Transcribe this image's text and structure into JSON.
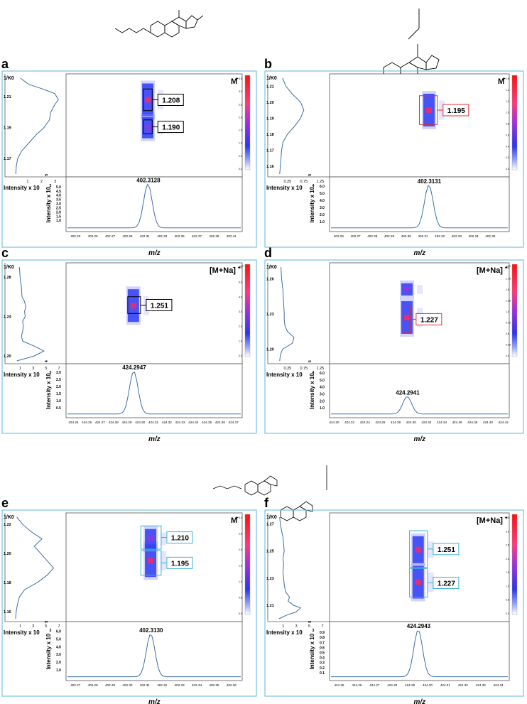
{
  "colors": {
    "frame": "#5bb7d8",
    "trace": "#3b6ea5",
    "black_box": "#000000",
    "red_box": "#e03030",
    "cyan_box": "#39b0d8"
  },
  "chart_data": [
    {
      "panel": "a",
      "type": "mobility-heatmap",
      "ion": "M",
      "ion_sup": "+",
      "y_axis_label": "1/K0",
      "y_ticks": [
        "1.21",
        "1.19",
        "1.17"
      ],
      "ylim": [
        1.16,
        1.222
      ],
      "x_intensity_label": "Intensity x 10",
      "x_intensity_exp": "3",
      "x_intensity_ticks": [
        "1",
        "2",
        "3"
      ],
      "x_intensity_max": 3.5,
      "mobilogram": [
        [
          1.16,
          0.06
        ],
        [
          1.165,
          0.1
        ],
        [
          1.17,
          0.2
        ],
        [
          1.175,
          0.5
        ],
        [
          1.18,
          1.0
        ],
        [
          1.185,
          1.5
        ],
        [
          1.19,
          2.1
        ],
        [
          1.195,
          2.5
        ],
        [
          1.2,
          2.6
        ],
        [
          1.205,
          2.9
        ],
        [
          1.208,
          3.15
        ],
        [
          1.212,
          2.9
        ],
        [
          1.215,
          2.0
        ],
        [
          1.218,
          1.0
        ],
        [
          1.222,
          0.4
        ]
      ],
      "spots": [
        {
          "mz": 402.3128,
          "k": 1.208,
          "amp": 1.0
        },
        {
          "mz": 402.3128,
          "k": 1.19,
          "amp": 0.6
        }
      ],
      "boxes": [
        {
          "label": "1.208",
          "mz_lo": 402.3078,
          "mz_hi": 402.3178,
          "k_lo": 1.201,
          "k_hi": 1.215,
          "color": "#000000"
        },
        {
          "label": "1.190",
          "mz_lo": 402.3078,
          "mz_hi": 402.3178,
          "k_lo": 1.186,
          "k_hi": 1.195,
          "color": "#000000"
        }
      ],
      "mz_peak": 402.3128,
      "mz_label": "402.3128",
      "mz_ticks": [
        "402.23",
        "402.25",
        "402.27",
        "402.29",
        "402.31",
        "402.33",
        "402.35",
        "402.37",
        "402.39",
        "402.41"
      ],
      "mz_range": [
        402.22,
        402.42
      ],
      "spec_ylabel": "Intensity x 10",
      "spec_yexp": "5",
      "spec_yticks": [
        "1.0",
        "1.5",
        "2.0",
        "2.5",
        "3.0",
        "3.5",
        "4.0",
        "4.5",
        "5.0"
      ],
      "spec_ymax": 5.5,
      "spec_peak_height": 5.2,
      "xlabel": "m/z",
      "scale_ticks": [
        "3.5",
        "3.0",
        "2.5",
        "2.0",
        "1.5",
        "1.0",
        "0.5",
        "0.0"
      ]
    },
    {
      "panel": "b",
      "type": "mobility-heatmap",
      "ion": "M",
      "ion_sup": "+",
      "y_axis_label": "1/K0",
      "y_ticks": [
        "1.21",
        "1.20",
        "1.19",
        "1.18",
        "1.17",
        "1.16"
      ],
      "ylim": [
        1.155,
        1.215
      ],
      "x_intensity_label": "Intensity x 10",
      "x_intensity_exp": "4",
      "x_intensity_ticks": [
        "0.25",
        "0.75",
        "1.25"
      ],
      "x_intensity_max": 1.5,
      "mobilogram": [
        [
          1.155,
          0.06
        ],
        [
          1.16,
          0.08
        ],
        [
          1.165,
          0.1
        ],
        [
          1.17,
          0.12
        ],
        [
          1.175,
          0.16
        ],
        [
          1.18,
          0.3
        ],
        [
          1.185,
          0.52
        ],
        [
          1.19,
          0.7
        ],
        [
          1.195,
          0.8
        ],
        [
          1.2,
          0.7
        ],
        [
          1.205,
          0.45
        ],
        [
          1.21,
          0.25
        ],
        [
          1.215,
          0.15
        ]
      ],
      "spots": [
        {
          "mz": 402.3131,
          "k": 1.195,
          "amp": 1.0
        }
      ],
      "boxes": [
        {
          "label": "1.195",
          "mz_lo": 402.3075,
          "mz_hi": 402.318,
          "k_lo": 1.186,
          "k_hi": 1.204,
          "color": "#e03030"
        }
      ],
      "mz_peak": 402.3131,
      "mz_label": "402.3131",
      "mz_ticks": [
        "402.26",
        "402.27",
        "402.28",
        "402.29",
        "402.30",
        "402.31",
        "402.32",
        "402.33",
        "402.34",
        "402.35"
      ],
      "mz_range": [
        402.255,
        402.36
      ],
      "spec_ylabel": "Intensity x 10",
      "spec_yexp": "5",
      "spec_yticks": [
        "1.0",
        "2.0",
        "3.0",
        "4.0",
        "5.0",
        "6.0"
      ],
      "spec_ymax": 6.5,
      "spec_peak_height": 6.0,
      "xlabel": "m/z",
      "scale_ticks": [
        "1.6",
        "1.4",
        "1.2",
        "1.0",
        "0.8",
        "0.6",
        "0.4",
        "0.2",
        "0.0"
      ]
    },
    {
      "panel": "c",
      "type": "mobility-heatmap",
      "ion": "[M+Na]",
      "ion_sup": "+",
      "y_axis_label": "1/K0",
      "y_ticks": [
        "1.28",
        "1.24",
        "1.20"
      ],
      "ylim": [
        1.195,
        1.29
      ],
      "x_intensity_label": "Intensity x 10",
      "x_intensity_exp": "3",
      "x_intensity_ticks": [
        "1",
        "3",
        "5",
        "7"
      ],
      "x_intensity_max": 7.5,
      "mobilogram": [
        [
          1.195,
          0.3
        ],
        [
          1.2,
          3.0
        ],
        [
          1.205,
          4.5
        ],
        [
          1.21,
          3.0
        ],
        [
          1.215,
          1.2
        ],
        [
          1.22,
          1.0
        ],
        [
          1.225,
          1.2
        ],
        [
          1.23,
          1.3
        ],
        [
          1.235,
          1.2
        ],
        [
          1.24,
          1.6
        ],
        [
          1.245,
          1.5
        ],
        [
          1.25,
          1.7
        ],
        [
          1.255,
          1.5
        ],
        [
          1.26,
          1.1
        ],
        [
          1.27,
          1.0
        ],
        [
          1.28,
          0.8
        ],
        [
          1.29,
          0.7
        ]
      ],
      "spots": [
        {
          "mz": 424.2947,
          "k": 1.251,
          "amp": 1.0
        }
      ],
      "boxes": [
        {
          "label": "1.251",
          "mz_lo": 424.2905,
          "mz_hi": 424.3,
          "k_lo": 1.243,
          "k_hi": 1.26,
          "color": "#000000"
        }
      ],
      "mz_peak": 424.2947,
      "mz_label": "424.2947",
      "mz_ticks": [
        "424.25",
        "424.26",
        "424.27",
        "424.28",
        "424.29",
        "424.30",
        "424.31",
        "424.32",
        "424.33",
        "424.34",
        "424.35",
        "424.36",
        "424.37"
      ],
      "mz_range": [
        424.245,
        424.375
      ],
      "spec_ylabel": "Intensity x 10",
      "spec_yexp": "4",
      "spec_yticks": [
        "0.5",
        "1.0",
        "1.5",
        "2.0",
        "2.5",
        "3.0"
      ],
      "spec_ymax": 3.2,
      "spec_peak_height": 3.0,
      "xlabel": "m/z",
      "scale_ticks": [
        "6.0",
        "5.0",
        "4.0",
        "3.0",
        "2.0",
        "1.0",
        "0.0"
      ],
      "scale_exp": "x10"
    },
    {
      "panel": "d",
      "type": "mobility-heatmap",
      "ion": "[M+Na]",
      "ion_sup": "+",
      "y_axis_label": "1/K0",
      "y_ticks": [
        "1.26",
        "1.23",
        "1.20"
      ],
      "ylim": [
        1.19,
        1.27
      ],
      "x_intensity_label": "Intensity x 10",
      "x_intensity_exp": "4",
      "x_intensity_ticks": [
        "0.25",
        "0.75",
        "1.25"
      ],
      "x_intensity_max": 1.5,
      "mobilogram": [
        [
          1.19,
          0.06
        ],
        [
          1.195,
          0.08
        ],
        [
          1.2,
          0.15
        ],
        [
          1.205,
          0.45
        ],
        [
          1.21,
          0.5
        ],
        [
          1.215,
          0.3
        ],
        [
          1.22,
          0.22
        ],
        [
          1.225,
          0.2
        ],
        [
          1.23,
          0.2
        ],
        [
          1.24,
          0.18
        ],
        [
          1.25,
          0.16
        ],
        [
          1.26,
          0.12
        ],
        [
          1.27,
          0.1
        ]
      ],
      "spots": [
        {
          "mz": 424.2941,
          "k": 1.227,
          "amp": 1.0
        },
        {
          "mz": 424.2941,
          "k": 1.251,
          "amp": 0.28
        }
      ],
      "boxes": [
        {
          "label": "1.227",
          "mz_lo": 424.2895,
          "mz_hi": 424.2985,
          "k_lo": 1.214,
          "k_hi": 1.237,
          "color": "#e03030"
        }
      ],
      "mz_peak": 424.2941,
      "mz_label": "424.2941",
      "mz_ticks": [
        "424.20",
        "424.22",
        "424.24",
        "424.26",
        "424.28",
        "424.30",
        "424.32",
        "424.34",
        "424.36",
        "424.38",
        "424.40",
        "424.42"
      ],
      "mz_range": [
        424.195,
        424.425
      ],
      "spec_ylabel": "Intensity x 10",
      "spec_yexp": "5",
      "spec_yticks": [
        "1.0",
        "2.0",
        "3.0",
        "4.0",
        "5.0",
        "6.0"
      ],
      "spec_ymax": 6.5,
      "spec_peak_height": 2.5,
      "xlabel": "m/z",
      "scale_ticks": [
        "2.0",
        "1.75",
        "1.5",
        "1.25",
        "1.0",
        "0.75",
        "0.5",
        "0.25",
        "0.0"
      ],
      "scale_exp": "x10"
    },
    {
      "panel": "e",
      "type": "mobility-heatmap",
      "ion": "M",
      "ion_sup": "+",
      "y_axis_label": "1/K0",
      "y_ticks": [
        "1.22",
        "1.20",
        "1.18",
        "1.16"
      ],
      "ylim": [
        1.155,
        1.225
      ],
      "x_intensity_label": "Intensity x 10",
      "x_intensity_exp": "3",
      "x_intensity_ticks": [
        "1",
        "3",
        "5",
        "7"
      ],
      "x_intensity_max": 7.5,
      "mobilogram": [
        [
          1.155,
          0.1
        ],
        [
          1.16,
          0.2
        ],
        [
          1.165,
          0.4
        ],
        [
          1.17,
          0.7
        ],
        [
          1.175,
          1.5
        ],
        [
          1.18,
          3.5
        ],
        [
          1.185,
          5.0
        ],
        [
          1.19,
          6.0
        ],
        [
          1.195,
          5.0
        ],
        [
          1.2,
          4.0
        ],
        [
          1.205,
          3.0
        ],
        [
          1.21,
          4.2
        ],
        [
          1.215,
          2.5
        ],
        [
          1.22,
          1.2
        ],
        [
          1.225,
          0.3
        ]
      ],
      "spots": [
        {
          "mz": 402.313,
          "k": 1.195,
          "amp": 1.0
        },
        {
          "mz": 402.313,
          "k": 1.21,
          "amp": 0.55
        }
      ],
      "boxes": [
        {
          "label": "1.210",
          "mz_lo": 402.3075,
          "mz_hi": 402.319,
          "k_lo": 1.203,
          "k_hi": 1.219,
          "color": "#39b0d8"
        },
        {
          "label": "1.195",
          "mz_lo": 402.3075,
          "mz_hi": 402.319,
          "k_lo": 1.185,
          "k_hi": 1.202,
          "color": "#39b0d8"
        }
      ],
      "mz_peak": 402.313,
      "mz_label": "402.3130",
      "mz_ticks": [
        "402.27",
        "402.28",
        "402.29",
        "402.30",
        "402.31",
        "402.32",
        "402.33",
        "402.34",
        "402.35",
        "402.36"
      ],
      "mz_range": [
        402.265,
        402.365
      ],
      "spec_ylabel": "Intensity x 10",
      "spec_yexp": "5",
      "spec_yticks": [
        "1.0",
        "2.0",
        "3.0",
        "4.0",
        "5.0",
        "6.0"
      ],
      "spec_ymax": 6.5,
      "spec_peak_height": 5.5,
      "xlabel": "m/z",
      "scale_ticks": [
        "3.0",
        "2.5",
        "2.0",
        "1.5",
        "1.0",
        "0.5",
        "0.0"
      ]
    },
    {
      "panel": "f",
      "type": "mobility-heatmap",
      "ion": "[M+Na]",
      "ion_sup": "+",
      "y_axis_label": "1/K0",
      "y_ticks": [
        "1.27",
        "1.25",
        "1.23",
        "1.21"
      ],
      "ylim": [
        1.2,
        1.275
      ],
      "x_intensity_label": "Intensity x 10",
      "x_intensity_exp": "3",
      "x_intensity_ticks": [
        "1",
        "3",
        "5",
        "7"
      ],
      "x_intensity_max": 7.5,
      "mobilogram": [
        [
          1.2,
          0.2
        ],
        [
          1.203,
          1.5
        ],
        [
          1.205,
          2.8
        ],
        [
          1.208,
          3.5
        ],
        [
          1.21,
          2.4
        ],
        [
          1.213,
          1.6
        ],
        [
          1.216,
          1.8
        ],
        [
          1.22,
          1.2
        ],
        [
          1.225,
          1.0
        ],
        [
          1.23,
          0.9
        ],
        [
          1.235,
          0.8
        ],
        [
          1.24,
          0.9
        ],
        [
          1.245,
          0.8
        ],
        [
          1.25,
          1.0
        ],
        [
          1.255,
          0.9
        ],
        [
          1.26,
          0.8
        ],
        [
          1.265,
          0.6
        ],
        [
          1.27,
          0.4
        ],
        [
          1.275,
          0.3
        ]
      ],
      "spots": [
        {
          "mz": 424.2943,
          "k": 1.251,
          "amp": 0.8
        },
        {
          "mz": 424.2943,
          "k": 1.227,
          "amp": 1.0
        }
      ],
      "boxes": [
        {
          "label": "1.251",
          "mz_lo": 424.2895,
          "mz_hi": 424.2995,
          "k_lo": 1.238,
          "k_hi": 1.265,
          "color": "#39b0d8"
        },
        {
          "label": "1.227",
          "mz_lo": 424.2895,
          "mz_hi": 424.2995,
          "k_lo": 1.216,
          "k_hi": 1.237,
          "color": "#39b0d8"
        }
      ],
      "mz_peak": 424.2943,
      "mz_label": "424.2943",
      "mz_ticks": [
        "424.25",
        "424.26",
        "424.27",
        "424.28",
        "424.29",
        "424.30",
        "424.31",
        "424.32",
        "424.33",
        "424.34"
      ],
      "mz_range": [
        424.245,
        424.345
      ],
      "spec_ylabel": "Intensity x 10",
      "spec_yexp": "5",
      "spec_yticks": [
        "0.1",
        "0.2",
        "0.3",
        "0.4",
        "0.5",
        "0.6",
        "0.7",
        "0.8",
        "0.9"
      ],
      "spec_ymax": 1.0,
      "spec_peak_height": 0.93,
      "xlabel": "m/z",
      "scale_ticks": [
        "3.5",
        "3.0",
        "2.5",
        "2.0",
        "1.5",
        "1.0",
        "0.5",
        "0.0"
      ]
    }
  ]
}
